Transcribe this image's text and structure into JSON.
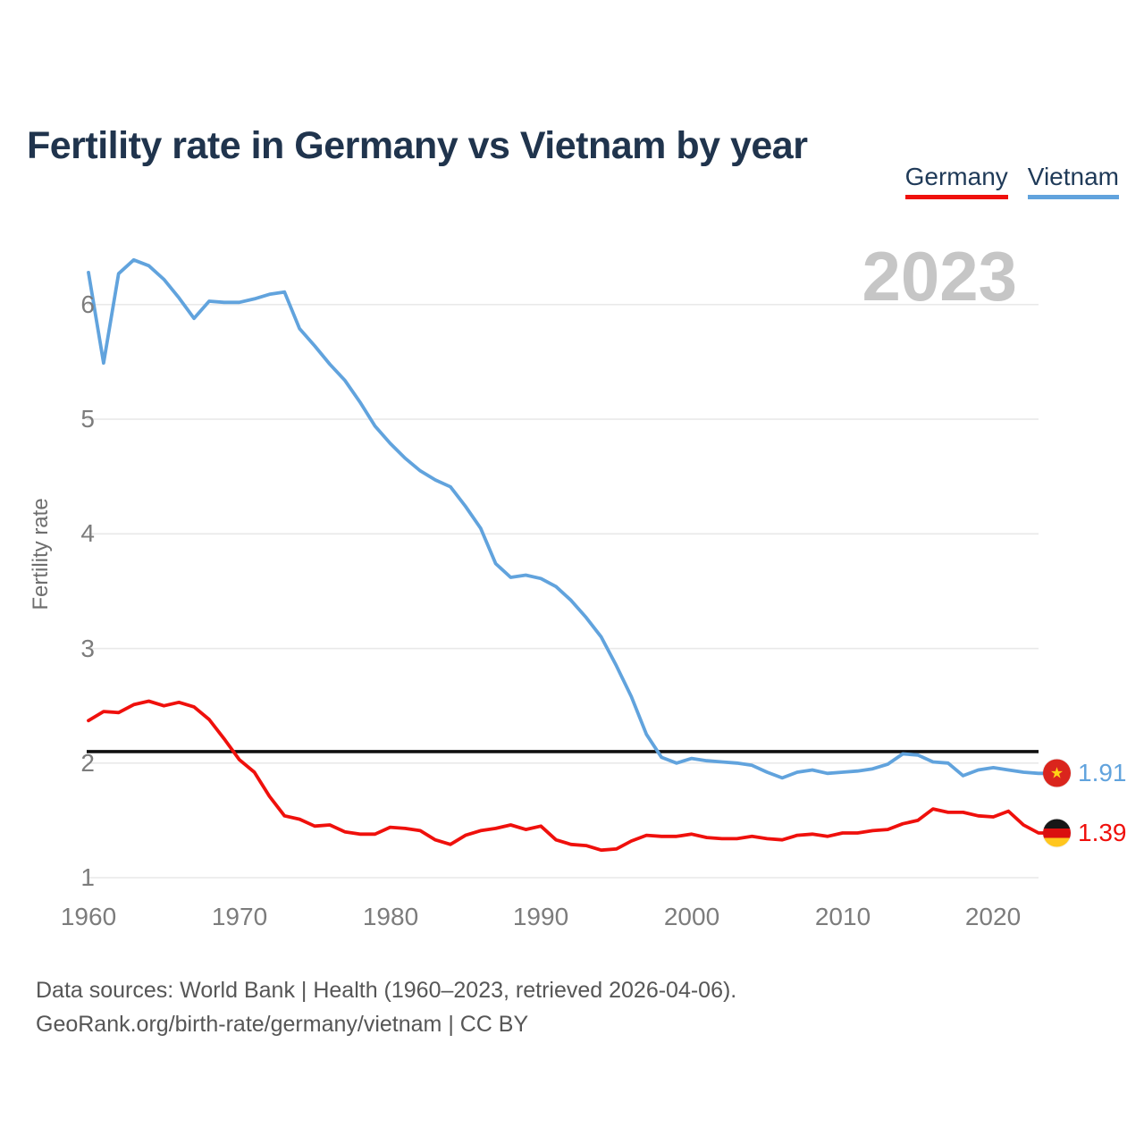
{
  "header": {
    "title": "Fertility rate in Germany vs Vietnam by year"
  },
  "legend": {
    "items": [
      {
        "label": "Germany",
        "color": "#ef100c"
      },
      {
        "label": "Vietnam",
        "color": "#61a3dd"
      }
    ]
  },
  "watermark": "2023",
  "axes": {
    "y_label": "Fertility rate",
    "y_ticks": [
      "6",
      "5",
      "4",
      "3",
      "2",
      "1"
    ],
    "x_ticks": [
      "1960",
      "1970",
      "1980",
      "1990",
      "2000",
      "2010",
      "2020"
    ]
  },
  "end_labels": [
    {
      "series": "Vietnam",
      "value": "1.91",
      "flag": "vietnam-flag"
    },
    {
      "series": "Germany",
      "value": "1.39",
      "flag": "germany-flag"
    }
  ],
  "icons": {
    "vietnam_star": "★"
  },
  "footer": {
    "line1": "Data sources: World Bank | Health (1960–2023, retrieved 2026-04-06).",
    "line2": "GeoRank.org/birth-rate/germany/vietnam | CC BY"
  },
  "chart_data": {
    "type": "line",
    "title": "Fertility rate in Germany vs Vietnam by year",
    "xlabel": "",
    "ylabel": "Fertility rate",
    "x_range": [
      1960,
      2023
    ],
    "ylim": [
      1,
      6.5
    ],
    "grid": "horizontal",
    "legend_position": "top-right",
    "reference_line": {
      "value": 2.1,
      "color": "#101010"
    },
    "x": [
      1960,
      1961,
      1962,
      1963,
      1964,
      1965,
      1966,
      1967,
      1968,
      1969,
      1970,
      1971,
      1972,
      1973,
      1974,
      1975,
      1976,
      1977,
      1978,
      1979,
      1980,
      1981,
      1982,
      1983,
      1984,
      1985,
      1986,
      1987,
      1988,
      1989,
      1990,
      1991,
      1992,
      1993,
      1994,
      1995,
      1996,
      1997,
      1998,
      1999,
      2000,
      2001,
      2002,
      2003,
      2004,
      2005,
      2006,
      2007,
      2008,
      2009,
      2010,
      2011,
      2012,
      2013,
      2014,
      2015,
      2016,
      2017,
      2018,
      2019,
      2020,
      2021,
      2022,
      2023
    ],
    "series": [
      {
        "name": "Vietnam",
        "color": "#61a3dd",
        "values": [
          6.28,
          5.49,
          6.27,
          6.39,
          6.34,
          6.22,
          6.06,
          5.88,
          6.03,
          6.02,
          6.02,
          6.05,
          6.09,
          6.11,
          5.79,
          5.64,
          5.48,
          5.34,
          5.15,
          4.94,
          4.79,
          4.66,
          4.55,
          4.47,
          4.41,
          4.24,
          4.05,
          3.74,
          3.62,
          3.64,
          3.61,
          3.54,
          3.42,
          3.27,
          3.1,
          2.85,
          2.58,
          2.25,
          2.05,
          2.0,
          2.04,
          2.02,
          2.01,
          2.0,
          1.98,
          1.92,
          1.87,
          1.92,
          1.94,
          1.91,
          1.92,
          1.93,
          1.95,
          1.99,
          2.08,
          2.07,
          2.01,
          2.0,
          1.89,
          1.94,
          1.96,
          1.94,
          1.92,
          1.91
        ]
      },
      {
        "name": "Germany",
        "color": "#ef100c",
        "values": [
          2.37,
          2.45,
          2.44,
          2.51,
          2.54,
          2.5,
          2.53,
          2.49,
          2.38,
          2.21,
          2.03,
          1.92,
          1.71,
          1.54,
          1.51,
          1.45,
          1.46,
          1.4,
          1.38,
          1.38,
          1.44,
          1.43,
          1.41,
          1.33,
          1.29,
          1.37,
          1.41,
          1.43,
          1.46,
          1.42,
          1.45,
          1.33,
          1.29,
          1.28,
          1.24,
          1.25,
          1.32,
          1.37,
          1.36,
          1.36,
          1.38,
          1.35,
          1.34,
          1.34,
          1.36,
          1.34,
          1.33,
          1.37,
          1.38,
          1.36,
          1.39,
          1.39,
          1.41,
          1.42,
          1.47,
          1.5,
          1.6,
          1.57,
          1.57,
          1.54,
          1.53,
          1.58,
          1.46,
          1.39
        ]
      }
    ]
  }
}
